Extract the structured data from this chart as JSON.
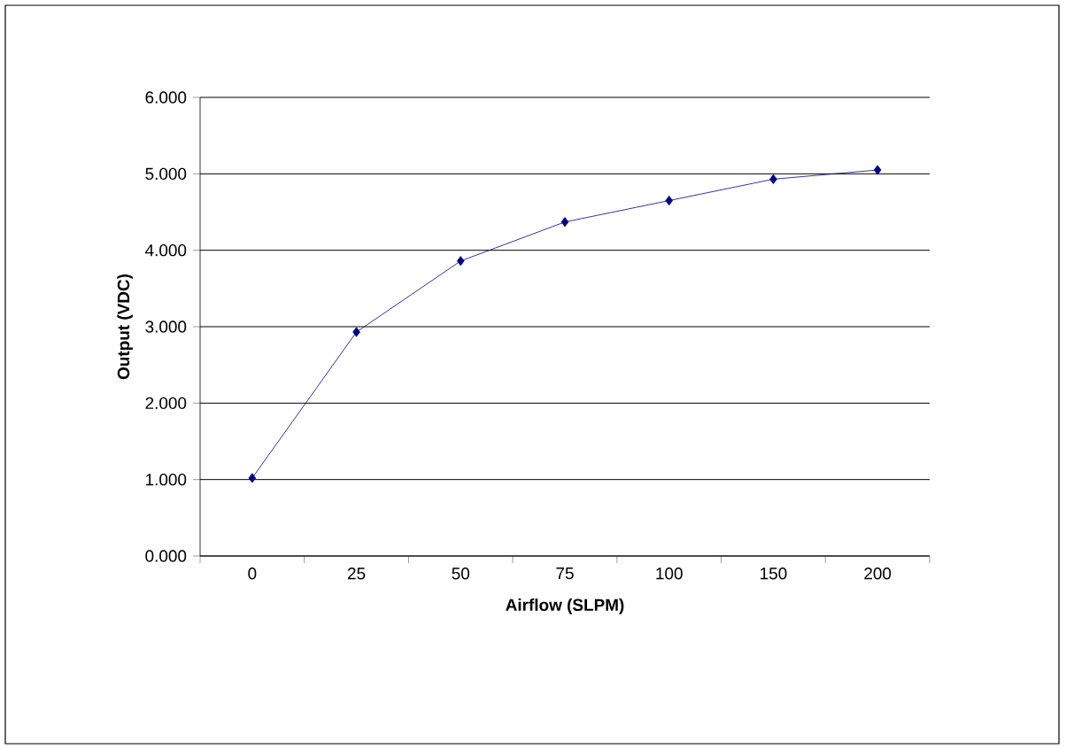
{
  "chart_data": {
    "type": "line",
    "xlabel": "Airflow (SLPM)",
    "ylabel": "Output (VDC)",
    "categories": [
      "0",
      "25",
      "50",
      "75",
      "100",
      "150",
      "200"
    ],
    "series": [
      {
        "color": "#000080",
        "values": [
          1.02,
          2.93,
          3.86,
          4.37,
          4.65,
          4.93,
          5.05
        ]
      }
    ],
    "ylim": [
      0,
      6
    ],
    "yticks": [
      {
        "value": 0,
        "label": "0.000"
      },
      {
        "value": 1,
        "label": "1.000"
      },
      {
        "value": 2,
        "label": "2.000"
      },
      {
        "value": 3,
        "label": "3.000"
      },
      {
        "value": 4,
        "label": "4.000"
      },
      {
        "value": 5,
        "label": "5.000"
      },
      {
        "value": 6,
        "label": "6.000"
      }
    ],
    "grid": "y",
    "marker": "diamond",
    "line_style": "solid"
  }
}
